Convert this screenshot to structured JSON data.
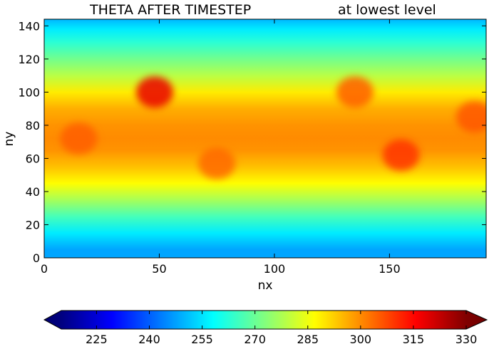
{
  "chart_data": {
    "type": "heatmap",
    "title_left": "THETA AFTER TIMESTEP",
    "title_right": "at lowest level",
    "xlabel": "nx",
    "ylabel": "ny",
    "xlim": [
      0,
      192
    ],
    "ylim": [
      0,
      144
    ],
    "xticks": [
      0,
      50,
      100,
      150
    ],
    "yticks": [
      0,
      20,
      40,
      60,
      80,
      100,
      120,
      140
    ],
    "grid": false,
    "colormap": "jet",
    "colorbar": {
      "orientation": "horizontal",
      "placement": "bottom",
      "extend": "both",
      "vmin": 215,
      "vmax": 330,
      "ticks": [
        225,
        240,
        255,
        270,
        285,
        300,
        315,
        330
      ]
    },
    "field_summary": [
      {
        "ny": 5,
        "value": 248
      },
      {
        "ny": 15,
        "value": 256
      },
      {
        "ny": 25,
        "value": 266
      },
      {
        "ny": 35,
        "value": 277
      },
      {
        "ny": 45,
        "value": 287
      },
      {
        "ny": 55,
        "value": 294
      },
      {
        "ny": 65,
        "value": 299
      },
      {
        "ny": 72,
        "value": 300
      },
      {
        "ny": 80,
        "value": 299
      },
      {
        "ny": 90,
        "value": 296
      },
      {
        "ny": 100,
        "value": 289
      },
      {
        "ny": 110,
        "value": 279
      },
      {
        "ny": 120,
        "value": 271
      },
      {
        "ny": 130,
        "value": 263
      },
      {
        "ny": 138,
        "value": 256
      },
      {
        "ny": 144,
        "value": 250
      }
    ],
    "hot_regions": [
      {
        "nx": 15,
        "ny": 72,
        "value": 305
      },
      {
        "nx": 48,
        "ny": 100,
        "value": 318
      },
      {
        "nx": 75,
        "ny": 57,
        "value": 304
      },
      {
        "nx": 135,
        "ny": 100,
        "value": 305
      },
      {
        "nx": 155,
        "ny": 62,
        "value": 310
      },
      {
        "nx": 187,
        "ny": 85,
        "value": 306
      }
    ]
  }
}
